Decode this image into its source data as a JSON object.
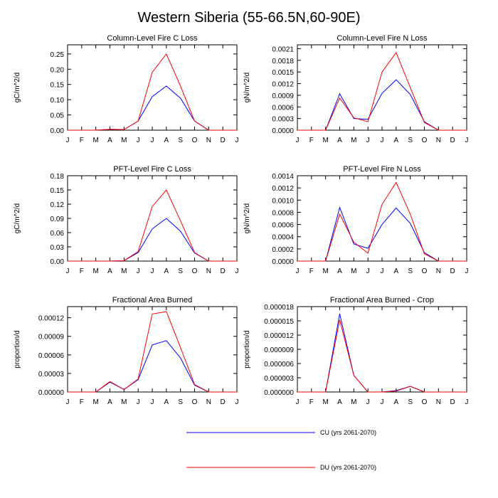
{
  "figure": {
    "title": "Western Siberia (55-66.5N,60-90E)"
  },
  "colors": {
    "cu": "#0000ff",
    "du": "#ff0000",
    "axis": "#000000"
  },
  "legend": [
    {
      "label": "CU (yrs 2061-2070)",
      "color": "#0000ff"
    },
    {
      "label": "DU (yrs 2061-2070)",
      "color": "#ff0000"
    }
  ],
  "chart_data": [
    {
      "type": "line",
      "title": "Column-Level Fire C Loss",
      "ylabel": "gC/m^2/d",
      "categories": [
        "J",
        "F",
        "M",
        "A",
        "M",
        "J",
        "J",
        "A",
        "S",
        "O",
        "N",
        "D",
        "J"
      ],
      "ylim": [
        0,
        0.28
      ],
      "yticks": [
        "0.00",
        "0.05",
        "0.10",
        "0.15",
        "0.20",
        "0.25"
      ],
      "ytick_values": [
        0,
        0.05,
        0.1,
        0.15,
        0.2,
        0.25
      ],
      "series": [
        {
          "name": "CU (yrs 2061-2070)",
          "values": [
            0,
            0,
            0,
            0.003,
            0.002,
            0.03,
            0.11,
            0.145,
            0.105,
            0.03,
            0,
            0,
            0
          ]
        },
        {
          "name": "DU (yrs 2061-2070)",
          "values": [
            0,
            0,
            0,
            0.003,
            0.002,
            0.03,
            0.19,
            0.25,
            0.145,
            0.03,
            0,
            0,
            0
          ]
        }
      ]
    },
    {
      "type": "line",
      "title": "Column-Level Fire N Loss",
      "ylabel": "gN/m^2/d",
      "categories": [
        "J",
        "F",
        "M",
        "A",
        "M",
        "J",
        "J",
        "A",
        "S",
        "O",
        "N",
        "D",
        "J"
      ],
      "ylim": [
        0,
        0.0022
      ],
      "yticks": [
        "0.0000",
        "0.0003",
        "0.0006",
        "0.0009",
        "0.0012",
        "0.0015",
        "0.0018",
        "0.0021"
      ],
      "ytick_values": [
        0,
        0.0003,
        0.0006,
        0.0009,
        0.0012,
        0.0015,
        0.0018,
        0.0021
      ],
      "series": [
        {
          "name": "CU (yrs 2061-2070)",
          "values": [
            0,
            0,
            0,
            0.00094,
            0.0003,
            0.00028,
            0.00095,
            0.0013,
            0.00092,
            0.00022,
            0,
            0,
            0
          ]
        },
        {
          "name": "DU (yrs 2061-2070)",
          "values": [
            0,
            0,
            0,
            0.00083,
            0.00032,
            0.00022,
            0.0015,
            0.002,
            0.0011,
            0.0002,
            0,
            0,
            0
          ]
        }
      ]
    },
    {
      "type": "line",
      "title": "PFT-Level Fire C Loss",
      "ylabel": "gC/m^2/d",
      "categories": [
        "J",
        "F",
        "M",
        "A",
        "M",
        "J",
        "J",
        "A",
        "S",
        "O",
        "N",
        "D",
        "J"
      ],
      "ylim": [
        0,
        0.18
      ],
      "yticks": [
        "0.00",
        "0.03",
        "0.06",
        "0.09",
        "0.12",
        "0.15",
        "0.18"
      ],
      "ytick_values": [
        0,
        0.03,
        0.06,
        0.09,
        0.12,
        0.15,
        0.18
      ],
      "series": [
        {
          "name": "CU (yrs 2061-2070)",
          "values": [
            0,
            0,
            0,
            0,
            0.001,
            0.018,
            0.068,
            0.09,
            0.063,
            0.017,
            0,
            0,
            0
          ]
        },
        {
          "name": "DU (yrs 2061-2070)",
          "values": [
            0,
            0,
            0,
            0,
            0.001,
            0.02,
            0.115,
            0.15,
            0.085,
            0.018,
            0,
            0,
            0
          ]
        }
      ]
    },
    {
      "type": "line",
      "title": "PFT-Level Fire N Loss",
      "ylabel": "gN/m^2/d",
      "categories": [
        "J",
        "F",
        "M",
        "A",
        "M",
        "J",
        "J",
        "A",
        "S",
        "O",
        "N",
        "D",
        "J"
      ],
      "ylim": [
        0,
        0.0014
      ],
      "yticks": [
        "0.0000",
        "0.0002",
        "0.0004",
        "0.0006",
        "0.0008",
        "0.0010",
        "0.0012",
        "0.0014"
      ],
      "ytick_values": [
        0,
        0.0002,
        0.0004,
        0.0006,
        0.0008,
        0.001,
        0.0012,
        0.0014
      ],
      "series": [
        {
          "name": "CU (yrs 2061-2070)",
          "values": [
            0,
            0,
            0,
            0.00088,
            0.00028,
            0.00021,
            0.0006,
            0.00087,
            0.00062,
            0.00014,
            0,
            0,
            0
          ]
        },
        {
          "name": "DU (yrs 2061-2070)",
          "values": [
            0,
            0,
            0,
            0.00077,
            0.00031,
            0.00013,
            0.00093,
            0.00129,
            0.00077,
            0.00012,
            0,
            0,
            0
          ]
        }
      ]
    },
    {
      "type": "line",
      "title": "Fractional Area Burned",
      "ylabel": "proportion/d",
      "categories": [
        "J",
        "F",
        "M",
        "A",
        "M",
        "J",
        "J",
        "A",
        "S",
        "O",
        "N",
        "D",
        "J"
      ],
      "ylim": [
        0,
        0.000138
      ],
      "yticks": [
        "0.00000",
        "0.00003",
        "0.00006",
        "0.00009",
        "0.00012"
      ],
      "ytick_values": [
        0,
        3e-05,
        6e-05,
        9e-05,
        0.00012
      ],
      "series": [
        {
          "name": "CU (yrs 2061-2070)",
          "values": [
            0,
            0,
            0,
            1.6e-05,
            4e-06,
            2e-05,
            7.6e-05,
            8.3e-05,
            5.5e-05,
            1.1e-05,
            0,
            0,
            0
          ]
        },
        {
          "name": "DU (yrs 2061-2070)",
          "values": [
            0,
            0,
            0,
            1.7e-05,
            4e-06,
            2.1e-05,
            0.000126,
            0.00013,
            7.2e-05,
            1.2e-05,
            0,
            0,
            0
          ]
        }
      ]
    },
    {
      "type": "line",
      "title": "Fractional Area Burned - Crop",
      "ylabel": "proportion/d",
      "categories": [
        "J",
        "F",
        "M",
        "A",
        "M",
        "J",
        "J",
        "A",
        "S",
        "O",
        "N",
        "D",
        "J"
      ],
      "ylim": [
        0,
        1.8e-05
      ],
      "yticks": [
        "0.000000",
        "0.000003",
        "0.000006",
        "0.000009",
        "0.000012",
        "0.000015",
        "0.000018"
      ],
      "ytick_values": [
        0,
        3e-06,
        6e-06,
        9e-06,
        1.2e-05,
        1.5e-05,
        1.8e-05
      ],
      "series": [
        {
          "name": "CU (yrs 2061-2070)",
          "values": [
            0,
            0,
            0,
            1.65e-05,
            3.5e-06,
            0,
            0,
            3e-07,
            1.2e-06,
            0,
            0,
            0,
            0
          ]
        },
        {
          "name": "DU (yrs 2061-2070)",
          "values": [
            0,
            0,
            0,
            1.52e-05,
            3.5e-06,
            0,
            0,
            2e-07,
            1.2e-06,
            0,
            0,
            0,
            0
          ]
        }
      ]
    }
  ]
}
